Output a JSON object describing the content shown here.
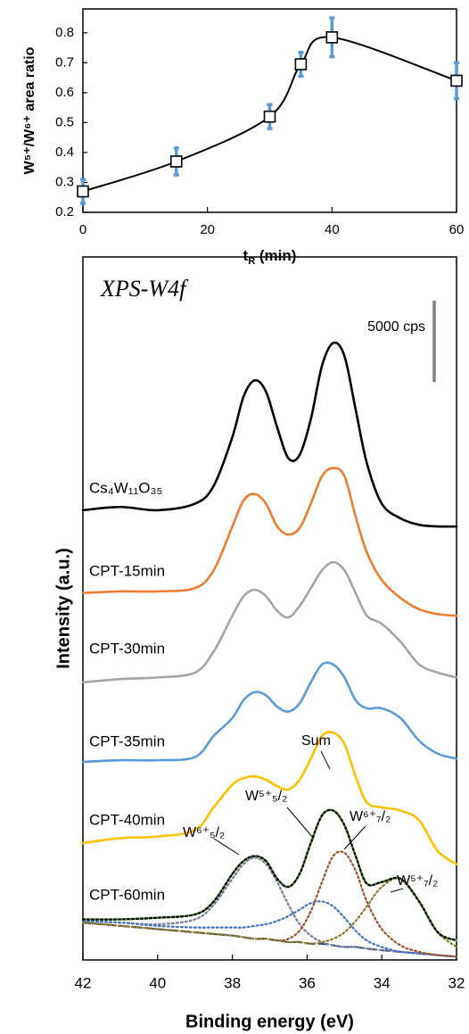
{
  "chart_data": [
    {
      "type": "line",
      "xlabel": [
        "t",
        "R",
        " (min)"
      ],
      "ylabel": "W⁵⁺/W⁶⁺ area ratio",
      "x": [
        0,
        15,
        30,
        35,
        40,
        60
      ],
      "values": [
        0.27,
        0.37,
        0.52,
        0.695,
        0.785,
        0.64
      ],
      "errors": [
        0.04,
        0.045,
        0.04,
        0.04,
        0.065,
        0.06
      ],
      "color": "#000000",
      "error_color": "#5b9bd5",
      "xlim": [
        0,
        60
      ],
      "ylim": [
        0.2,
        0.88
      ],
      "xticks": [
        0,
        20,
        40,
        60
      ],
      "yticks": [
        0.2,
        0.3,
        0.4,
        0.5,
        0.6,
        0.7,
        0.8
      ]
    },
    {
      "type": "line",
      "title": "XPS-W4f",
      "xlabel": "Binding energy (eV)",
      "ylabel": "Intensity (a.u.)",
      "scale_bar": {
        "value": 5000,
        "label": "5000 cps"
      },
      "xlim": [
        42,
        32
      ],
      "ylim": [
        0,
        43300
      ],
      "xticks": [
        42,
        40,
        38,
        36,
        34,
        32
      ],
      "x": [
        42,
        41,
        40,
        39,
        38.5,
        38,
        37.7,
        37.4,
        37.1,
        36.8,
        36.5,
        36.2,
        35.9,
        35.6,
        35.3,
        35,
        34.7,
        34.4,
        34,
        33.5,
        33,
        32.5,
        32
      ],
      "series": [
        {
          "name": "Cs₄W₁₁O₃₅",
          "color": "#000000",
          "linestyle": "solid",
          "values": [
            27700,
            27900,
            27700,
            28100,
            29200,
            32200,
            34700,
            35700,
            35000,
            32800,
            30900,
            31100,
            33300,
            36600,
            38000,
            37200,
            33900,
            30600,
            28100,
            27200,
            26800,
            26700,
            26700
          ]
        },
        {
          "name": "CPT-15min",
          "color": "#ed7d31",
          "linestyle": "solid",
          "values": [
            22600,
            22700,
            22700,
            22900,
            24000,
            26700,
            28300,
            28700,
            28100,
            26700,
            26200,
            26600,
            28100,
            29800,
            30300,
            29800,
            27300,
            25100,
            23400,
            22300,
            21600,
            21300,
            21200
          ]
        },
        {
          "name": "CPT-30min",
          "color": "#a5a5a5",
          "linestyle": "solid",
          "values": [
            17100,
            17300,
            17400,
            17700,
            19000,
            21200,
            22400,
            22800,
            22400,
            21500,
            21100,
            21800,
            22900,
            24000,
            24500,
            24000,
            22600,
            21200,
            20700,
            19600,
            18200,
            17700,
            17400
          ]
        },
        {
          "name": "CPT-35min",
          "color": "#5b9bd5",
          "linestyle": "solid",
          "values": [
            12200,
            12300,
            12300,
            12500,
            13800,
            14900,
            16000,
            16500,
            16300,
            15600,
            15300,
            15800,
            17100,
            18200,
            18200,
            17400,
            16000,
            15500,
            15500,
            14900,
            13500,
            12700,
            12400
          ]
        },
        {
          "name": "CPT-40min",
          "color": "#ffc000",
          "linestyle": "solid",
          "values": [
            7200,
            7500,
            7600,
            8000,
            9400,
            10800,
            11200,
            11300,
            11100,
            10700,
            10500,
            11100,
            12400,
            13800,
            14000,
            13300,
            11300,
            9700,
            9400,
            9200,
            8600,
            6700,
            5900
          ]
        },
        {
          "name": "CPT-60min",
          "color": "#70ad47",
          "linestyle": "solid",
          "values": [
            2500,
            2500,
            2600,
            2800,
            3600,
            5300,
            6100,
            6400,
            6100,
            5000,
            4500,
            5300,
            7200,
            8900,
            9200,
            8300,
            6400,
            4700,
            4800,
            5000,
            3600,
            1700,
            1200
          ]
        },
        {
          "color": "#264478",
          "linestyle": "dashed",
          "values": [
            2300,
            2100,
            1900,
            1700,
            1600,
            1500,
            1400,
            1300,
            1300,
            1200,
            1100,
            1100,
            1000,
            1000,
            900,
            800,
            800,
            700,
            600,
            500,
            400,
            300,
            200
          ]
        },
        {
          "name": "W⁶⁺₅/₂",
          "color": "#7a7a9a",
          "linestyle": "dotted",
          "values": [
            2400,
            2300,
            2200,
            2500,
            3400,
            5000,
            5900,
            6300,
            5900,
            4800,
            3400,
            2200,
            1500,
            1100,
            900,
            800,
            800,
            700,
            600,
            500,
            400,
            300,
            200
          ]
        },
        {
          "name": "W⁵⁺₅/₂",
          "color": "#4472c4",
          "linestyle": "dotted",
          "values": [
            2400,
            2300,
            2100,
            2000,
            2000,
            2000,
            2000,
            2100,
            2200,
            2400,
            2700,
            3100,
            3500,
            3600,
            3300,
            2600,
            1800,
            1200,
            800,
            500,
            400,
            300,
            200
          ]
        },
        {
          "name": "W⁶⁺₇/₂",
          "color": "#a0522d",
          "linestyle": "dotted",
          "values": [
            2300,
            2100,
            1900,
            1700,
            1600,
            1500,
            1400,
            1300,
            1300,
            1200,
            1300,
            1800,
            3000,
            4800,
            6400,
            6600,
            5500,
            3600,
            1900,
            900,
            500,
            300,
            200
          ]
        },
        {
          "name": "W⁵⁺₇/₂",
          "color": "#8c7a2a",
          "linestyle": "dotted",
          "values": [
            2300,
            2100,
            1900,
            1700,
            1600,
            1500,
            1400,
            1300,
            1300,
            1200,
            1100,
            1100,
            1000,
            1100,
            1300,
            1700,
            2400,
            3300,
            4500,
            5000,
            3600,
            1700,
            800
          ]
        },
        {
          "name": "Sum",
          "color": "#000000",
          "linestyle": "dotted",
          "values": [
            2500,
            2500,
            2600,
            2800,
            3600,
            5300,
            6100,
            6400,
            6100,
            5000,
            4500,
            5300,
            7200,
            8900,
            9200,
            8300,
            6400,
            4700,
            4800,
            5000,
            3600,
            1700,
            1200
          ]
        }
      ]
    }
  ]
}
